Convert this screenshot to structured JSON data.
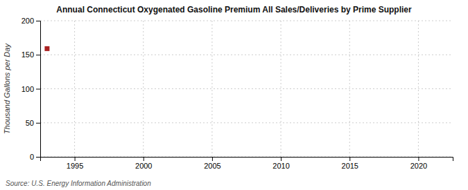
{
  "chart_data": {
    "type": "scatter",
    "title": "Annual Connecticut Oxygenated Gasoline Premium All Sales/Deliveries by Prime Supplier",
    "ylabel": "Thousand Gallons per Day",
    "source": "Source: U.S. Energy Information Administration",
    "x": [
      1993
    ],
    "values": [
      159
    ],
    "color": "#aa2222",
    "marker": "square",
    "xlim": [
      1992.5,
      2022.5
    ],
    "ylim": [
      0,
      200
    ],
    "xticks": [
      1995,
      2000,
      2005,
      2010,
      2015,
      2020
    ],
    "yticks": [
      0,
      50,
      100,
      150,
      200
    ],
    "grid": true
  }
}
